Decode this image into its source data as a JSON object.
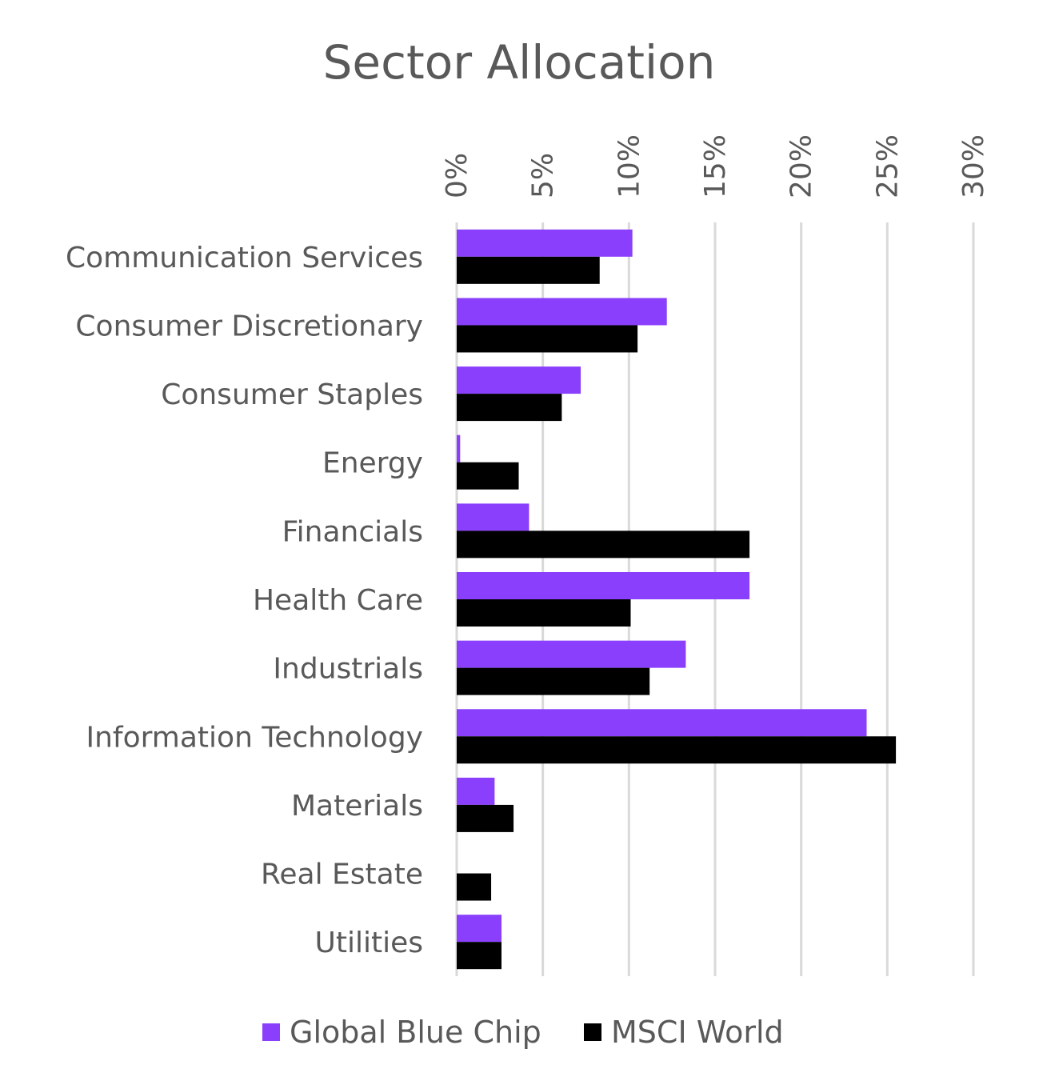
{
  "chart_data": {
    "type": "bar",
    "orientation": "horizontal",
    "title": "Sector Allocation",
    "xlabel": "",
    "ylabel": "",
    "xlim": [
      0,
      30
    ],
    "xticks": [
      "0%",
      "5%",
      "10%",
      "15%",
      "20%",
      "25%",
      "30%"
    ],
    "xtick_values": [
      0,
      5,
      10,
      15,
      20,
      25,
      30
    ],
    "grid": true,
    "legend_position": "bottom",
    "categories": [
      "Communication Services",
      "Consumer Discretionary",
      "Consumer Staples",
      "Energy",
      "Financials",
      "Health Care",
      "Industrials",
      "Information Technology",
      "Materials",
      "Real Estate",
      "Utilities"
    ],
    "series": [
      {
        "name": "Global Blue Chip",
        "color": "#8a3ffc",
        "values": [
          10.2,
          12.2,
          7.2,
          0.2,
          4.2,
          17.0,
          13.3,
          23.8,
          2.2,
          0.0,
          2.6
        ]
      },
      {
        "name": "MSCI World",
        "color": "#000000",
        "values": [
          8.3,
          10.5,
          6.1,
          3.6,
          17.0,
          10.1,
          11.2,
          25.5,
          3.3,
          2.0,
          2.6
        ]
      }
    ]
  }
}
